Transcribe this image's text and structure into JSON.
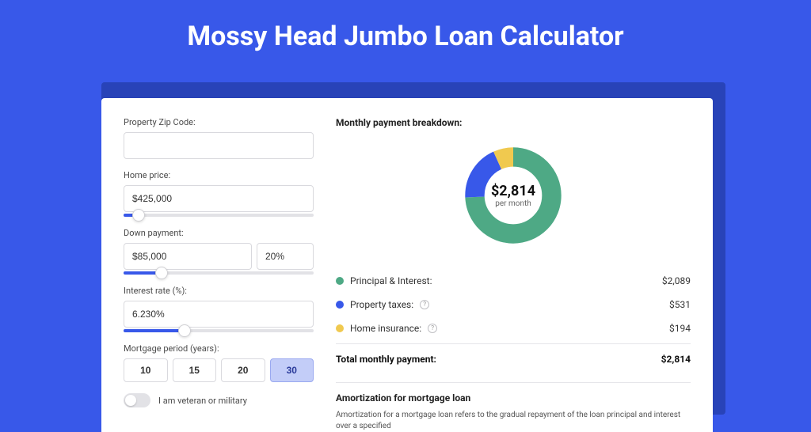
{
  "page": {
    "title": "Mossy Head Jumbo Loan Calculator",
    "bg_color": "#3858e9",
    "card_shadow_color": "#2843b8"
  },
  "form": {
    "zip": {
      "label": "Property Zip Code:",
      "value": ""
    },
    "home_price": {
      "label": "Home price:",
      "value": "$425,000",
      "slider_percent": 8
    },
    "down_payment": {
      "label": "Down payment:",
      "amount": "$85,000",
      "percent": "20%",
      "slider_percent": 20
    },
    "interest_rate": {
      "label": "Interest rate (%):",
      "value": "6.230%",
      "slider_percent": 32
    },
    "mortgage_period": {
      "label": "Mortgage period (years):",
      "options": [
        "10",
        "15",
        "20",
        "30"
      ],
      "selected": "30"
    },
    "veteran_toggle": {
      "label": "I am veteran or military",
      "checked": false
    }
  },
  "breakdown": {
    "title": "Monthly payment breakdown:",
    "donut": {
      "center_amount": "$2,814",
      "center_sub": "per month",
      "slices": [
        {
          "name": "principal_interest",
          "percent": 74.2,
          "color": "#4ea985"
        },
        {
          "name": "property_taxes",
          "percent": 18.9,
          "color": "#3858e9"
        },
        {
          "name": "home_insurance",
          "percent": 6.9,
          "color": "#f0c94f"
        }
      ]
    },
    "rows": [
      {
        "color": "#4ea985",
        "label": "Principal & Interest:",
        "value": "$2,089",
        "info": false
      },
      {
        "color": "#3858e9",
        "label": "Property taxes:",
        "value": "$531",
        "info": true
      },
      {
        "color": "#f0c94f",
        "label": "Home insurance:",
        "value": "$194",
        "info": true
      }
    ],
    "total": {
      "label": "Total monthly payment:",
      "value": "$2,814"
    }
  },
  "amortization": {
    "title": "Amortization for mortgage loan",
    "text": "Amortization for a mortgage loan refers to the gradual repayment of the loan principal and interest over a specified"
  }
}
